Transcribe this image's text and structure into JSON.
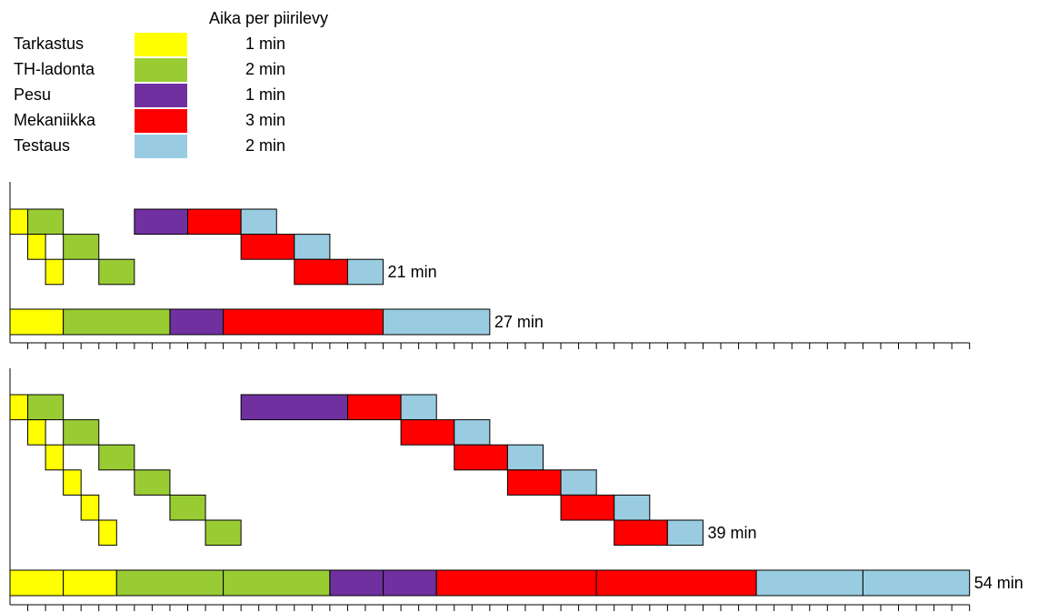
{
  "legend": {
    "title": "Aika per piirilevy",
    "items": [
      {
        "label": "Tarkastus",
        "time": "1 min",
        "minutes": 1,
        "color": "#ffff00"
      },
      {
        "label": "TH-ladonta",
        "time": "2 min",
        "minutes": 2,
        "color": "#99cc33"
      },
      {
        "label": "Pesu",
        "time": "1 min",
        "minutes": 1,
        "color": "#7030a0"
      },
      {
        "label": "Mekaniikka",
        "time": "3 min",
        "minutes": 3,
        "color": "#ff0000"
      },
      {
        "label": "Testaus",
        "time": "2 min",
        "minutes": 2,
        "color": "#99cce0"
      }
    ]
  },
  "chart_data": [
    {
      "type": "gantt",
      "ticks": 54,
      "pipeline": {
        "boards": 3,
        "pesu_batch": {
          "start": 7,
          "end": 10
        },
        "tasks": [
          {
            "stage": 0,
            "row": 0,
            "start": 0,
            "end": 1
          },
          {
            "stage": 1,
            "row": 0,
            "start": 1,
            "end": 3
          },
          {
            "stage": 0,
            "row": 1,
            "start": 1,
            "end": 2
          },
          {
            "stage": 1,
            "row": 1,
            "start": 3,
            "end": 5
          },
          {
            "stage": 0,
            "row": 2,
            "start": 2,
            "end": 3
          },
          {
            "stage": 1,
            "row": 2,
            "start": 5,
            "end": 7
          },
          {
            "stage": 3,
            "row": 0,
            "start": 10,
            "end": 13
          },
          {
            "stage": 4,
            "row": 0,
            "start": 13,
            "end": 15
          },
          {
            "stage": 3,
            "row": 1,
            "start": 13,
            "end": 16
          },
          {
            "stage": 4,
            "row": 1,
            "start": 16,
            "end": 18
          },
          {
            "stage": 3,
            "row": 2,
            "start": 16,
            "end": 19
          },
          {
            "stage": 4,
            "row": 2,
            "start": 19,
            "end": 21
          }
        ],
        "total_label": "21 min"
      },
      "sequential": {
        "segments": [
          {
            "stage": 0,
            "start": 0,
            "end": 3
          },
          {
            "stage": 1,
            "start": 3,
            "end": 9
          },
          {
            "stage": 2,
            "start": 9,
            "end": 12
          },
          {
            "stage": 3,
            "start": 12,
            "end": 21
          },
          {
            "stage": 4,
            "start": 21,
            "end": 27
          }
        ],
        "total_label": "27 min"
      }
    },
    {
      "type": "gantt",
      "ticks": 54,
      "pipeline": {
        "boards": 6,
        "pesu_batch": {
          "start": 13,
          "end": 19
        },
        "tasks": [
          {
            "stage": 0,
            "row": 0,
            "start": 0,
            "end": 1
          },
          {
            "stage": 1,
            "row": 0,
            "start": 1,
            "end": 3
          },
          {
            "stage": 0,
            "row": 1,
            "start": 1,
            "end": 2
          },
          {
            "stage": 1,
            "row": 1,
            "start": 3,
            "end": 5
          },
          {
            "stage": 0,
            "row": 2,
            "start": 2,
            "end": 3
          },
          {
            "stage": 1,
            "row": 2,
            "start": 5,
            "end": 7
          },
          {
            "stage": 0,
            "row": 3,
            "start": 3,
            "end": 4
          },
          {
            "stage": 1,
            "row": 3,
            "start": 7,
            "end": 9
          },
          {
            "stage": 0,
            "row": 4,
            "start": 4,
            "end": 5
          },
          {
            "stage": 1,
            "row": 4,
            "start": 9,
            "end": 11
          },
          {
            "stage": 0,
            "row": 5,
            "start": 5,
            "end": 6
          },
          {
            "stage": 1,
            "row": 5,
            "start": 11,
            "end": 13
          },
          {
            "stage": 3,
            "row": 0,
            "start": 19,
            "end": 22
          },
          {
            "stage": 4,
            "row": 0,
            "start": 22,
            "end": 24
          },
          {
            "stage": 3,
            "row": 1,
            "start": 22,
            "end": 25
          },
          {
            "stage": 4,
            "row": 1,
            "start": 25,
            "end": 27
          },
          {
            "stage": 3,
            "row": 2,
            "start": 25,
            "end": 28
          },
          {
            "stage": 4,
            "row": 2,
            "start": 28,
            "end": 30
          },
          {
            "stage": 3,
            "row": 3,
            "start": 28,
            "end": 31
          },
          {
            "stage": 4,
            "row": 3,
            "start": 31,
            "end": 33
          },
          {
            "stage": 3,
            "row": 4,
            "start": 31,
            "end": 34
          },
          {
            "stage": 4,
            "row": 4,
            "start": 34,
            "end": 36
          },
          {
            "stage": 3,
            "row": 5,
            "start": 34,
            "end": 37
          },
          {
            "stage": 4,
            "row": 5,
            "start": 37,
            "end": 39
          }
        ],
        "total_label": "39 min"
      },
      "sequential": {
        "segments": [
          {
            "stage": 0,
            "start": 0,
            "end": 3
          },
          {
            "stage": 0,
            "start": 3,
            "end": 6
          },
          {
            "stage": 1,
            "start": 6,
            "end": 12
          },
          {
            "stage": 1,
            "start": 12,
            "end": 18
          },
          {
            "stage": 2,
            "start": 18,
            "end": 21
          },
          {
            "stage": 2,
            "start": 21,
            "end": 24
          },
          {
            "stage": 3,
            "start": 24,
            "end": 33
          },
          {
            "stage": 3,
            "start": 33,
            "end": 42
          },
          {
            "stage": 4,
            "start": 42,
            "end": 48
          },
          {
            "stage": 4,
            "start": 48,
            "end": 54
          }
        ],
        "total_label": "54 min"
      }
    }
  ]
}
